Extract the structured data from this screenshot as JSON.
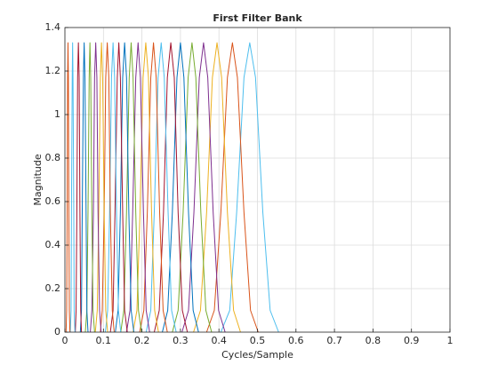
{
  "chart_data": {
    "type": "line",
    "title": "First Filter Bank",
    "xlabel": "Cycles/Sample",
    "ylabel": "Magnitude",
    "xlim": [
      0,
      1
    ],
    "ylim": [
      0,
      1.4
    ],
    "xticks": [
      0,
      0.1,
      0.2,
      0.3,
      0.4,
      0.5,
      0.6,
      0.7,
      0.8,
      0.9,
      1
    ],
    "yticks": [
      0,
      0.2,
      0.4,
      0.6,
      0.8,
      1,
      1.2,
      1.4
    ],
    "grid": true,
    "series": [
      {
        "color": "#4DBEEE",
        "x": [
          0.405,
          0.428,
          0.446,
          0.465,
          0.48,
          0.495,
          0.514,
          0.533,
          0.555
        ],
        "values": [
          0,
          0.1,
          0.55,
          1.17,
          1.33,
          1.17,
          0.55,
          0.1,
          0
        ]
      },
      {
        "color": "#D95319",
        "x": [
          0.368,
          0.388,
          0.405,
          0.422,
          0.435,
          0.448,
          0.465,
          0.482,
          0.502
        ],
        "values": [
          0,
          0.1,
          0.55,
          1.17,
          1.33,
          1.17,
          0.55,
          0.1,
          0
        ]
      },
      {
        "color": "#EDB120",
        "x": [
          0.334,
          0.352,
          0.368,
          0.383,
          0.395,
          0.407,
          0.422,
          0.438,
          0.456
        ],
        "values": [
          0,
          0.1,
          0.55,
          1.17,
          1.33,
          1.17,
          0.55,
          0.1,
          0
        ]
      },
      {
        "color": "#7E2F8E",
        "x": [
          0.304,
          0.321,
          0.335,
          0.349,
          0.36,
          0.371,
          0.385,
          0.399,
          0.416
        ],
        "values": [
          0,
          0.1,
          0.55,
          1.17,
          1.33,
          1.17,
          0.55,
          0.1,
          0
        ]
      },
      {
        "color": "#77AC30",
        "x": [
          0.279,
          0.294,
          0.307,
          0.32,
          0.33,
          0.34,
          0.353,
          0.366,
          0.381
        ],
        "values": [
          0,
          0.1,
          0.55,
          1.17,
          1.33,
          1.17,
          0.55,
          0.1,
          0
        ]
      },
      {
        "color": "#0072BD",
        "x": [
          0.253,
          0.267,
          0.279,
          0.291,
          0.3,
          0.309,
          0.321,
          0.333,
          0.347
        ],
        "values": [
          0,
          0.1,
          0.55,
          1.17,
          1.33,
          1.17,
          0.55,
          0.1,
          0
        ]
      },
      {
        "color": "#A2142F",
        "x": [
          0.232,
          0.245,
          0.256,
          0.266,
          0.275,
          0.284,
          0.294,
          0.305,
          0.318
        ],
        "values": [
          0,
          0.1,
          0.55,
          1.17,
          1.33,
          1.17,
          0.55,
          0.1,
          0
        ]
      },
      {
        "color": "#4DBEEE",
        "x": [
          0.211,
          0.223,
          0.232,
          0.242,
          0.25,
          0.258,
          0.268,
          0.277,
          0.289
        ],
        "values": [
          0,
          0.1,
          0.55,
          1.17,
          1.33,
          1.17,
          0.55,
          0.1,
          0
        ]
      },
      {
        "color": "#D95319",
        "x": [
          0.194,
          0.205,
          0.214,
          0.223,
          0.23,
          0.237,
          0.246,
          0.255,
          0.266
        ],
        "values": [
          0,
          0.1,
          0.55,
          1.17,
          1.33,
          1.17,
          0.55,
          0.1,
          0
        ]
      },
      {
        "color": "#EDB120",
        "x": [
          0.177,
          0.187,
          0.195,
          0.203,
          0.21,
          0.217,
          0.225,
          0.233,
          0.243
        ],
        "values": [
          0,
          0.1,
          0.55,
          1.17,
          1.33,
          1.17,
          0.55,
          0.1,
          0
        ]
      },
      {
        "color": "#7E2F8E",
        "x": [
          0.16,
          0.169,
          0.176,
          0.184,
          0.19,
          0.196,
          0.204,
          0.211,
          0.22
        ],
        "values": [
          0,
          0.1,
          0.55,
          1.17,
          1.33,
          1.17,
          0.55,
          0.1,
          0
        ]
      },
      {
        "color": "#77AC30",
        "x": [
          0.145,
          0.153,
          0.16,
          0.167,
          0.172,
          0.177,
          0.184,
          0.191,
          0.199
        ],
        "values": [
          0,
          0.1,
          0.55,
          1.17,
          1.33,
          1.17,
          0.55,
          0.1,
          0
        ]
      },
      {
        "color": "#0072BD",
        "x": [
          0.131,
          0.138,
          0.144,
          0.15,
          0.155,
          0.16,
          0.166,
          0.172,
          0.179
        ],
        "values": [
          0,
          0.1,
          0.55,
          1.17,
          1.33,
          1.17,
          0.55,
          0.1,
          0
        ]
      },
      {
        "color": "#A2142F",
        "x": [
          0.118,
          0.125,
          0.13,
          0.136,
          0.14,
          0.144,
          0.15,
          0.155,
          0.162
        ],
        "values": [
          0,
          0.1,
          0.55,
          1.17,
          1.33,
          1.17,
          0.55,
          0.1,
          0
        ]
      },
      {
        "color": "#4DBEEE",
        "x": [
          0.105,
          0.111,
          0.116,
          0.121,
          0.125,
          0.129,
          0.134,
          0.139,
          0.145
        ],
        "values": [
          0,
          0.1,
          0.55,
          1.17,
          1.33,
          1.17,
          0.55,
          0.1,
          0
        ]
      },
      {
        "color": "#D95319",
        "x": [
          0.092,
          0.097,
          0.102,
          0.106,
          0.11,
          0.114,
          0.118,
          0.123,
          0.128
        ],
        "values": [
          0,
          0.1,
          0.55,
          1.17,
          1.33,
          1.17,
          0.55,
          0.1,
          0
        ]
      },
      {
        "color": "#EDB120",
        "x": [
          0.079,
          0.084,
          0.088,
          0.092,
          0.095,
          0.098,
          0.102,
          0.106,
          0.111
        ],
        "values": [
          0,
          0.1,
          0.55,
          1.17,
          1.33,
          1.17,
          0.55,
          0.1,
          0
        ]
      },
      {
        "color": "#7E2F8E",
        "x": [
          0.066,
          0.07,
          0.074,
          0.077,
          0.08,
          0.083,
          0.086,
          0.09,
          0.094
        ],
        "values": [
          0,
          0.1,
          0.55,
          1.17,
          1.33,
          1.17,
          0.55,
          0.1,
          0
        ]
      },
      {
        "color": "#77AC30",
        "x": [
          0.053,
          0.057,
          0.06,
          0.063,
          0.065,
          0.067,
          0.07,
          0.073,
          0.077
        ],
        "values": [
          0,
          0.1,
          0.55,
          1.17,
          1.33,
          1.17,
          0.55,
          0.1,
          0
        ]
      },
      {
        "color": "#0072BD",
        "x": [
          0.04,
          0.043,
          0.045,
          0.048,
          0.05,
          0.052,
          0.055,
          0.057,
          0.06
        ],
        "values": [
          0,
          0.1,
          0.55,
          1.17,
          1.33,
          1.17,
          0.55,
          0.1,
          0
        ]
      },
      {
        "color": "#A2142F",
        "x": [
          0.027,
          0.029,
          0.031,
          0.033,
          0.035,
          0.037,
          0.039,
          0.041,
          0.043
        ],
        "values": [
          0,
          0.1,
          0.55,
          1.17,
          1.33,
          1.17,
          0.55,
          0.1,
          0
        ]
      },
      {
        "color": "#4DBEEE",
        "x": [
          0.014,
          0.016,
          0.017,
          0.019,
          0.02,
          0.021,
          0.023,
          0.024,
          0.026
        ],
        "values": [
          0,
          0.1,
          0.55,
          1.17,
          1.33,
          1.17,
          0.55,
          0.1,
          0
        ]
      },
      {
        "color": "#D95319",
        "x": [
          0.003,
          0.0045,
          0.0058,
          0.007,
          0.008,
          0.009,
          0.0102,
          0.0115,
          0.013
        ],
        "values": [
          0,
          0.1,
          0.55,
          1.17,
          1.33,
          1.17,
          0.55,
          0.1,
          0
        ]
      }
    ]
  }
}
